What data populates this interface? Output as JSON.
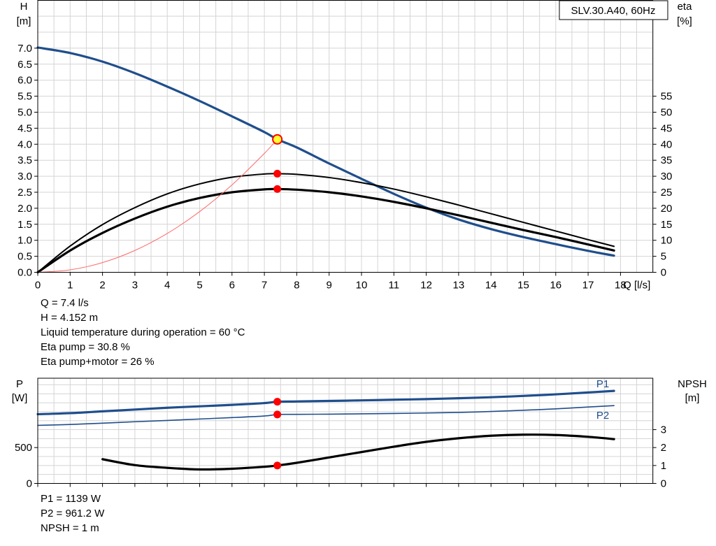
{
  "colors": {
    "curve_blue": "#1f4e8c",
    "grid": "#d4d4d4",
    "point_red": "#ff0000",
    "point_yellow": "#ffff33",
    "system_curve": "#ff6a6a"
  },
  "readouts_top": [
    "Q = 7.4 l/s",
    "H = 4.152 m",
    "Liquid temperature during operation = 60 °C",
    "Eta pump = 30.8 %",
    "Eta pump+motor = 26 %"
  ],
  "readouts_bottom": [
    "P1 = 1139 W",
    "P2 = 961.2 W",
    "NPSH = 1 m"
  ],
  "chart_data": [
    {
      "type": "line",
      "title": "SLV.30.A40, 60Hz",
      "xlabel": "Q [l/s]",
      "ylabel_left": [
        "H",
        "[m]"
      ],
      "ylabel_right": [
        "eta",
        "[%]"
      ],
      "xlim": [
        0,
        19
      ],
      "ylim_left": [
        0,
        8.5
      ],
      "ylim_right": [
        0,
        85
      ],
      "x_ticks": [
        "0",
        "1",
        "2",
        "3",
        "4",
        "5",
        "6",
        "7",
        "8",
        "9",
        "10",
        "11",
        "12",
        "13",
        "14",
        "15",
        "16",
        "17",
        "18"
      ],
      "y_ticks_left": [
        "0.0",
        "0.5",
        "1.0",
        "1.5",
        "2.0",
        "2.5",
        "3.0",
        "3.5",
        "4.0",
        "4.5",
        "5.0",
        "5.5",
        "6.0",
        "6.5",
        "7.0"
      ],
      "y_ticks_right": [
        "0",
        "5",
        "10",
        "15",
        "20",
        "25",
        "30",
        "35",
        "40",
        "45",
        "50",
        "55"
      ],
      "grid": true,
      "series": [
        {
          "axis": "left",
          "x": [
            0,
            1,
            2,
            3,
            4,
            5,
            6,
            7,
            7.4,
            8,
            9,
            10,
            11,
            12,
            13,
            14,
            15,
            16,
            17,
            17.8
          ],
          "y": [
            7.02,
            6.85,
            6.58,
            6.22,
            5.8,
            5.35,
            4.87,
            4.38,
            4.152,
            3.9,
            3.4,
            2.92,
            2.45,
            2.02,
            1.65,
            1.35,
            1.1,
            0.88,
            0.67,
            0.52
          ]
        },
        {
          "axis": "right",
          "x": [
            0,
            1,
            2,
            3,
            4,
            5,
            6,
            7,
            7.4,
            8,
            9,
            10,
            11,
            12,
            13,
            14,
            15,
            16,
            17,
            17.8
          ],
          "y": [
            0,
            8.2,
            14.9,
            20.2,
            24.5,
            27.6,
            29.7,
            30.7,
            30.8,
            30.6,
            29.6,
            28.0,
            26.0,
            23.6,
            21.0,
            18.3,
            15.6,
            12.9,
            10.2,
            8.1
          ]
        },
        {
          "axis": "right",
          "x": [
            0,
            1,
            2,
            3,
            4,
            5,
            6,
            7,
            7.4,
            8,
            9,
            10,
            11,
            12,
            13,
            14,
            15,
            16,
            17,
            17.8
          ],
          "y": [
            0,
            6.8,
            12.3,
            16.8,
            20.5,
            23.2,
            25.0,
            25.9,
            26.0,
            25.8,
            25.0,
            23.7,
            22.0,
            20.0,
            17.8,
            15.5,
            13.2,
            11.0,
            8.7,
            6.8
          ]
        },
        {
          "axis": "left",
          "x": [
            0,
            1,
            2,
            3,
            4,
            5,
            6,
            7,
            7.4
          ],
          "y": [
            0,
            0.076,
            0.303,
            0.682,
            1.213,
            1.895,
            2.729,
            3.714,
            4.152
          ]
        }
      ],
      "points": [
        {
          "axis": "left",
          "x": 7.4,
          "y": 4.152,
          "color": "yellow"
        },
        {
          "axis": "right",
          "x": 7.4,
          "y": 30.8,
          "color": "red"
        },
        {
          "axis": "right",
          "x": 7.4,
          "y": 26.0,
          "color": "red"
        }
      ]
    },
    {
      "type": "line",
      "ylabel_left": [
        "P",
        "[W]"
      ],
      "ylabel_right": [
        "NPSH",
        "[m]"
      ],
      "xlim": [
        0,
        19
      ],
      "ylim_left": [
        0,
        1500
      ],
      "ylim_right": [
        0,
        6
      ],
      "y_ticks_left": [
        "0",
        "500"
      ],
      "y_ticks_right": [
        "0",
        "1",
        "2",
        "3"
      ],
      "grid": true,
      "series": [
        {
          "name": "P1",
          "axis": "left",
          "x": [
            0,
            1,
            2,
            3,
            4,
            5,
            6,
            7,
            7.4,
            8,
            9,
            10,
            11,
            12,
            13,
            14,
            15,
            16,
            17,
            17.8
          ],
          "y": [
            965,
            980,
            1005,
            1030,
            1055,
            1075,
            1095,
            1120,
            1139,
            1143,
            1150,
            1158,
            1167,
            1176,
            1188,
            1202,
            1220,
            1242,
            1268,
            1290
          ]
        },
        {
          "name": "P2",
          "axis": "left",
          "x": [
            0,
            1,
            2,
            3,
            4,
            5,
            6,
            7,
            7.4,
            8,
            9,
            10,
            11,
            12,
            13,
            14,
            15,
            16,
            17,
            17.8
          ],
          "y": [
            810,
            822,
            840,
            860,
            878,
            898,
            918,
            940,
            961.2,
            963,
            966,
            970,
            975,
            982,
            990,
            1003,
            1020,
            1040,
            1065,
            1085
          ]
        },
        {
          "axis": "right",
          "x": [
            2,
            3,
            4,
            5,
            6,
            7,
            7.4,
            8,
            9,
            10,
            11,
            12,
            13,
            14,
            15,
            16,
            17,
            17.8
          ],
          "y": [
            1.35,
            1.02,
            0.87,
            0.78,
            0.82,
            0.93,
            1.0,
            1.15,
            1.45,
            1.75,
            2.05,
            2.32,
            2.52,
            2.66,
            2.72,
            2.7,
            2.6,
            2.47
          ]
        }
      ],
      "points": [
        {
          "axis": "left",
          "x": 7.4,
          "y": 1139,
          "color": "red"
        },
        {
          "axis": "left",
          "x": 7.4,
          "y": 961.2,
          "color": "red"
        },
        {
          "axis": "right",
          "x": 7.4,
          "y": 1.0,
          "color": "red"
        }
      ]
    }
  ]
}
